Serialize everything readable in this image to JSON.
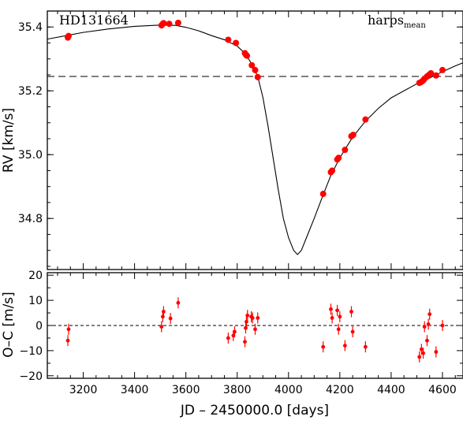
{
  "chart_data": {
    "type": "scatter",
    "star": "HD131664",
    "instrument": "harps",
    "instrument_sub": "mean",
    "xlabel": "JD – 2450000.0 [days]",
    "x_range": [
      3060,
      4680
    ],
    "x_ticks": [
      3200,
      3400,
      3600,
      3800,
      4000,
      4200,
      4400,
      4600
    ],
    "grid": false,
    "legend": "none",
    "colors": {
      "points": "#ff0000",
      "model": "#000000",
      "zero_line": "#000000"
    },
    "rv_panel": {
      "ylabel": "RV [km/s]",
      "y_range": [
        34.64,
        35.45
      ],
      "y_ticks": [
        "34.8",
        "35.0",
        "35.2",
        "35.4"
      ],
      "systemic_velocity": 35.245,
      "points": [
        [
          3140,
          35.367
        ],
        [
          3143,
          35.372
        ],
        [
          3505,
          35.405
        ],
        [
          3510,
          35.41
        ],
        [
          3513,
          35.412
        ],
        [
          3535,
          35.41
        ],
        [
          3570,
          35.413
        ],
        [
          3765,
          35.36
        ],
        [
          3795,
          35.35
        ],
        [
          3830,
          35.318
        ],
        [
          3835,
          35.312
        ],
        [
          3838,
          35.31
        ],
        [
          3857,
          35.28
        ],
        [
          3870,
          35.265
        ],
        [
          3880,
          35.243
        ],
        [
          4135,
          34.877
        ],
        [
          4165,
          34.945
        ],
        [
          4170,
          34.95
        ],
        [
          4190,
          34.985
        ],
        [
          4195,
          34.99
        ],
        [
          4220,
          35.015
        ],
        [
          4245,
          35.058
        ],
        [
          4252,
          35.062
        ],
        [
          4300,
          35.11
        ],
        [
          4510,
          35.225
        ],
        [
          4518,
          35.228
        ],
        [
          4525,
          35.233
        ],
        [
          4530,
          35.238
        ],
        [
          4540,
          35.245
        ],
        [
          4548,
          35.25
        ],
        [
          4555,
          35.255
        ],
        [
          4575,
          35.248
        ],
        [
          4600,
          35.265
        ]
      ],
      "model_curve": [
        [
          3060,
          35.362
        ],
        [
          3140,
          35.374
        ],
        [
          3200,
          35.383
        ],
        [
          3300,
          35.394
        ],
        [
          3400,
          35.402
        ],
        [
          3500,
          35.406
        ],
        [
          3560,
          35.405
        ],
        [
          3600,
          35.399
        ],
        [
          3650,
          35.388
        ],
        [
          3700,
          35.373
        ],
        [
          3750,
          35.36
        ],
        [
          3800,
          35.34
        ],
        [
          3830,
          35.318
        ],
        [
          3860,
          35.28
        ],
        [
          3880,
          35.245
        ],
        [
          3900,
          35.18
        ],
        [
          3920,
          35.09
        ],
        [
          3940,
          34.99
        ],
        [
          3960,
          34.89
        ],
        [
          3980,
          34.8
        ],
        [
          4000,
          34.74
        ],
        [
          4020,
          34.7
        ],
        [
          4035,
          34.687
        ],
        [
          4050,
          34.7
        ],
        [
          4070,
          34.74
        ],
        [
          4100,
          34.8
        ],
        [
          4135,
          34.874
        ],
        [
          4165,
          34.935
        ],
        [
          4200,
          34.99
        ],
        [
          4250,
          35.055
        ],
        [
          4300,
          35.105
        ],
        [
          4350,
          35.145
        ],
        [
          4400,
          35.178
        ],
        [
          4450,
          35.2
        ],
        [
          4500,
          35.222
        ],
        [
          4550,
          35.24
        ],
        [
          4600,
          35.26
        ],
        [
          4650,
          35.278
        ],
        [
          4680,
          35.288
        ]
      ]
    },
    "residual_panel": {
      "ylabel": "O–C [m/s]",
      "y_range": [
        -21,
        21
      ],
      "y_ticks": [
        "−20",
        "−10",
        "0",
        "10",
        "20"
      ],
      "error_bar_m_s": 2.2,
      "points": [
        [
          3140,
          -6
        ],
        [
          3143,
          -1.5
        ],
        [
          3505,
          -0.5
        ],
        [
          3510,
          3.5
        ],
        [
          3513,
          5.5
        ],
        [
          3540,
          2.8
        ],
        [
          3570,
          9
        ],
        [
          3765,
          -5
        ],
        [
          3785,
          -4
        ],
        [
          3790,
          -2.5
        ],
        [
          3830,
          -6.5
        ],
        [
          3833,
          -1
        ],
        [
          3836,
          1.5
        ],
        [
          3840,
          4
        ],
        [
          3855,
          3.5
        ],
        [
          3860,
          3
        ],
        [
          3870,
          -1.5
        ],
        [
          3880,
          3
        ],
        [
          4135,
          -8.5
        ],
        [
          4165,
          6.5
        ],
        [
          4170,
          3
        ],
        [
          4190,
          6
        ],
        [
          4195,
          -1.5
        ],
        [
          4200,
          3.5
        ],
        [
          4220,
          -8
        ],
        [
          4245,
          5.5
        ],
        [
          4250,
          -2.5
        ],
        [
          4300,
          -8.5
        ],
        [
          4510,
          -12.5
        ],
        [
          4518,
          -9.5
        ],
        [
          4525,
          -11
        ],
        [
          4530,
          -0.5
        ],
        [
          4540,
          -6
        ],
        [
          4545,
          0.5
        ],
        [
          4550,
          4.5
        ],
        [
          4575,
          -10.5
        ],
        [
          4600,
          0
        ]
      ]
    }
  }
}
